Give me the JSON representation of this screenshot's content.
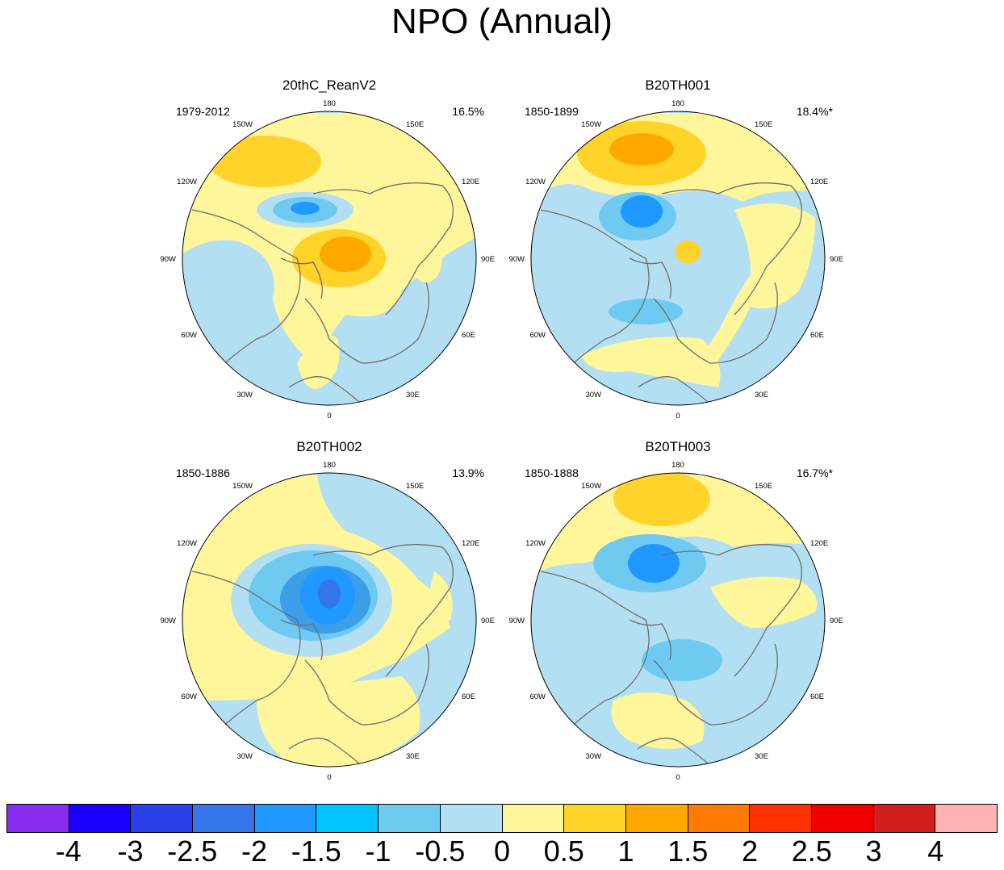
{
  "title": "NPO (Annual)",
  "colors": {
    "background": "#ffffff",
    "ocean_neutral": "#b3dff3",
    "land_outline": "#6e6e6e"
  },
  "colorbar": {
    "colors": [
      "#8a2bf0",
      "#1a00ff",
      "#2c40ea",
      "#3575ea",
      "#1f98ff",
      "#00c3ff",
      "#6fcaf2",
      "#b3dff3",
      "#fff59b",
      "#ffd329",
      "#ffa900",
      "#ff7a00",
      "#ff3000",
      "#f00000",
      "#d21e1e",
      "#ffb2b2"
    ],
    "labels": [
      "-4",
      "-3",
      "-2.5",
      "-2",
      "-1.5",
      "-1",
      "-0.5",
      "0",
      "0.5",
      "1",
      "1.5",
      "2",
      "2.5",
      "3",
      "4"
    ]
  },
  "panels": [
    {
      "title": "20thC_ReanV2",
      "period": "1979-2012",
      "variance": "16.5%",
      "lon_labels": [
        "180",
        "150E",
        "120E",
        "90E",
        "60E",
        "30E",
        "0",
        "30W",
        "60W",
        "90W",
        "120W",
        "150W"
      ]
    },
    {
      "title": "B20TH001",
      "period": "1850-1899",
      "variance": "18.4%*",
      "lon_labels": [
        "180",
        "150E",
        "120E",
        "90E",
        "60E",
        "30E",
        "0",
        "30W",
        "60W",
        "90W",
        "120W",
        "150W"
      ]
    },
    {
      "title": "B20TH002",
      "period": "1850-1886",
      "variance": "13.9%",
      "lon_labels": [
        "180",
        "150E",
        "120E",
        "90E",
        "60E",
        "30E",
        "0",
        "30W",
        "60W",
        "90W",
        "120W",
        "150W"
      ]
    },
    {
      "title": "B20TH003",
      "period": "1850-1888",
      "variance": "16.7%*",
      "lon_labels": [
        "180",
        "150E",
        "120E",
        "90E",
        "60E",
        "30E",
        "0",
        "30W",
        "60W",
        "90W",
        "120W",
        "150W"
      ]
    }
  ]
}
